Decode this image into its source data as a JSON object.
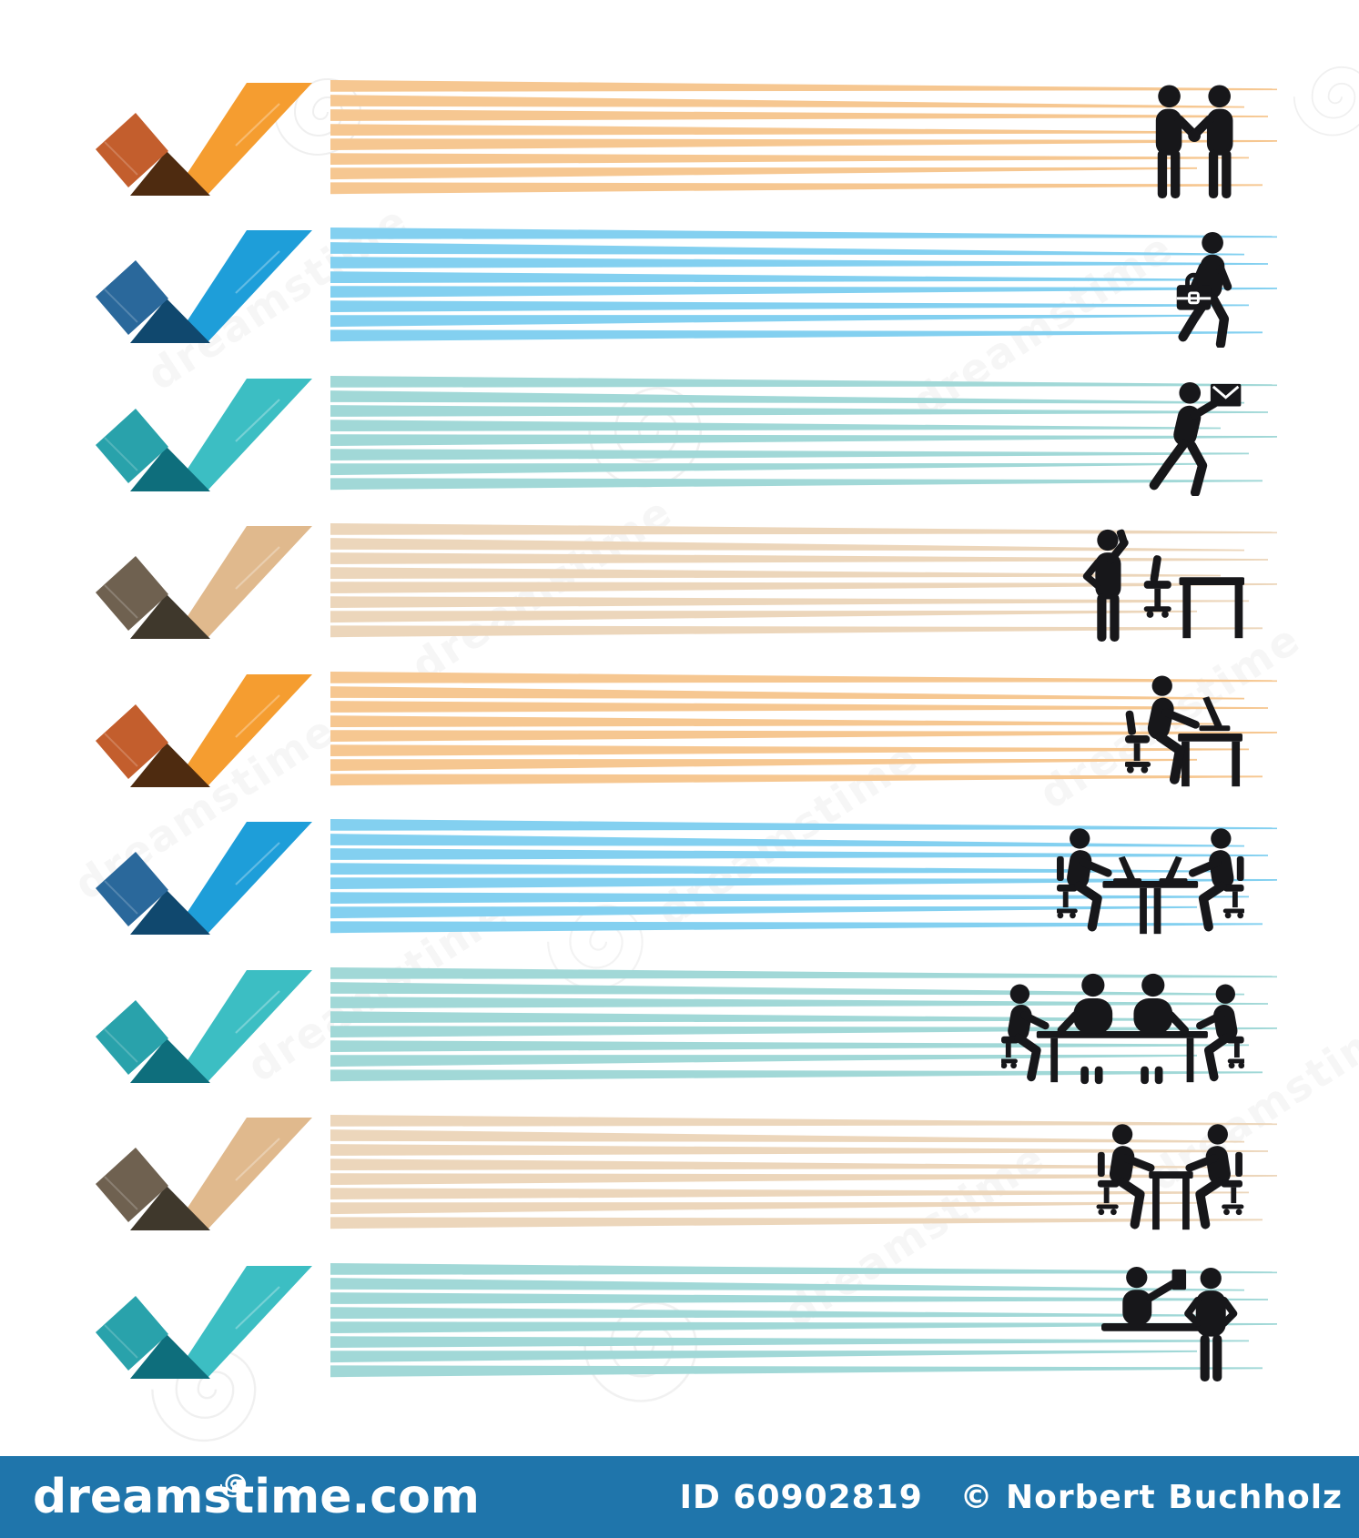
{
  "illustration": {
    "description": "Business checklist infographic: nine rows, each with a folded-ribbon check mark, tapering horizontal speed stripes and a black business pictogram",
    "ink_color": "#17171a",
    "background": "#ffffff"
  },
  "themes": {
    "orange": {
      "arm": "#F59D30",
      "fold_arm": "#C35E2D",
      "fold_shadow": "#4E2B10",
      "stripe": "#F6C48B"
    },
    "blue": {
      "arm": "#1E9ED9",
      "fold_arm": "#2A689B",
      "fold_shadow": "#10486E",
      "stripe": "#7CCDEF"
    },
    "teal": {
      "arm": "#3CBEC3",
      "fold_arm": "#29A2AB",
      "fold_shadow": "#0E6E7C",
      "stripe": "#9CD6D5"
    },
    "tan": {
      "arm": "#E0B98D",
      "fold_arm": "#6F6150",
      "fold_shadow": "#3F382C",
      "stripe": "#EBD4B7"
    }
  },
  "rows": [
    {
      "theme": "orange",
      "icon": "handshake",
      "depicts": "two businessmen shaking hands"
    },
    {
      "theme": "blue",
      "icon": "briefcase-walker",
      "depicts": "businessman walking with briefcase"
    },
    {
      "theme": "teal",
      "icon": "mail-runner",
      "depicts": "man hurrying with a letter"
    },
    {
      "theme": "tan",
      "icon": "phone-desk",
      "depicts": "man on the phone beside office chair and desk"
    },
    {
      "theme": "orange",
      "icon": "laptop-desk",
      "depicts": "man working at a laptop on a desk"
    },
    {
      "theme": "blue",
      "icon": "two-laptop-meeting",
      "depicts": "two people at a table with laptops"
    },
    {
      "theme": "teal",
      "icon": "team-meeting",
      "depicts": "four people in a meeting around a table"
    },
    {
      "theme": "tan",
      "icon": "table-talk",
      "depicts": "two people talking across a table"
    },
    {
      "theme": "teal",
      "icon": "reception-desk",
      "depicts": "clerk at a counter serving a standing person"
    }
  ],
  "watermark": {
    "text": "dreamstime",
    "footer_bar_color": "#1F75AB",
    "brand": "dreamstime.com",
    "id_label": "ID 60902819",
    "copyright": "© Norbert Buchholz"
  }
}
